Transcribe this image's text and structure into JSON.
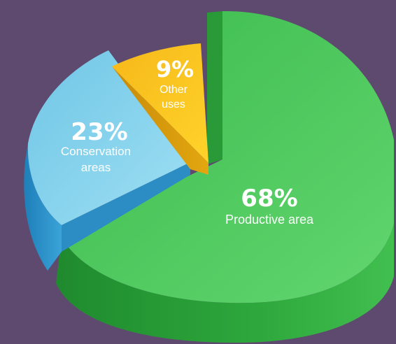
{
  "colors": {
    "background": "#5e4a6e",
    "productive": "#46c457",
    "conservation": "#7dcdea",
    "other": "#f8c61a"
  },
  "chart_data": {
    "type": "pie",
    "style": "3d-exploded",
    "title": "",
    "slices": [
      {
        "label_lines": [
          "Productive area"
        ],
        "value": 68,
        "value_label": "68%",
        "color": "#46c457"
      },
      {
        "label_lines": [
          "Conservation",
          "areas"
        ],
        "value": 23,
        "value_label": "23%",
        "color": "#7dcdea"
      },
      {
        "label_lines": [
          "Other",
          "uses"
        ],
        "value": 9,
        "value_label": "9%",
        "color": "#f8c61a"
      }
    ]
  }
}
